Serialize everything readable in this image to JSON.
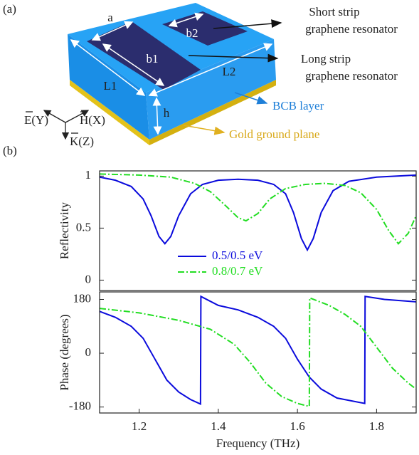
{
  "panels": [
    "(a)",
    "(b)"
  ],
  "diagram": {
    "dims": [
      "a",
      "b1",
      "b2",
      "L1",
      "L2",
      "h"
    ],
    "short_strip": [
      "Short strip",
      "graphene resonator"
    ],
    "long_strip": [
      "Long strip",
      "graphene resonator"
    ],
    "bcb": "BCB layer",
    "gold": "Gold ground plane",
    "axes": [
      "E(Y)",
      "H(X)",
      "K(Z)"
    ]
  },
  "chart_data": [
    {
      "type": "line",
      "ylabel": "Reflectivity",
      "xlim": [
        1.1,
        1.9
      ],
      "ylim": [
        -0.1,
        1.05
      ],
      "yticks": [
        0,
        0.5,
        1
      ],
      "legend": "lower center",
      "series": [
        {
          "name": "0.5/0.5 eV",
          "color": "#0a0adc",
          "linestyle": "solid",
          "x": [
            1.1,
            1.14,
            1.18,
            1.21,
            1.23,
            1.25,
            1.265,
            1.28,
            1.3,
            1.33,
            1.36,
            1.4,
            1.45,
            1.5,
            1.54,
            1.57,
            1.59,
            1.61,
            1.625,
            1.64,
            1.66,
            1.69,
            1.73,
            1.8,
            1.9
          ],
          "values": [
            0.99,
            0.96,
            0.9,
            0.78,
            0.62,
            0.42,
            0.35,
            0.42,
            0.62,
            0.83,
            0.92,
            0.96,
            0.97,
            0.96,
            0.92,
            0.83,
            0.65,
            0.4,
            0.29,
            0.4,
            0.65,
            0.86,
            0.95,
            0.99,
            1.01
          ]
        },
        {
          "name": "0.8/0.7 eV",
          "color": "#22dd22",
          "linestyle": "dashdot",
          "x": [
            1.1,
            1.2,
            1.28,
            1.34,
            1.38,
            1.42,
            1.45,
            1.47,
            1.5,
            1.53,
            1.57,
            1.62,
            1.67,
            1.72,
            1.76,
            1.8,
            1.83,
            1.855,
            1.88,
            1.9
          ],
          "values": [
            1.02,
            1.01,
            0.99,
            0.93,
            0.85,
            0.71,
            0.6,
            0.57,
            0.64,
            0.78,
            0.88,
            0.92,
            0.93,
            0.91,
            0.84,
            0.68,
            0.48,
            0.35,
            0.45,
            0.62
          ]
        }
      ]
    },
    {
      "type": "line",
      "ylabel": "Phase (degrees)",
      "xlabel": "Frequency (THz)",
      "xlim": [
        1.1,
        1.9
      ],
      "ylim": [
        -200,
        205
      ],
      "xticks": [
        1.2,
        1.4,
        1.6,
        1.8
      ],
      "yticks": [
        -180,
        0,
        180
      ],
      "series": [
        {
          "color": "#0a0adc",
          "linestyle": "solid",
          "x": [
            1.1,
            1.14,
            1.18,
            1.21,
            1.24,
            1.27,
            1.3,
            1.33,
            1.355,
            1.356,
            1.4,
            1.45,
            1.5,
            1.54,
            1.57,
            1.6,
            1.63,
            1.66,
            1.7,
            1.77,
            1.771,
            1.82,
            1.9
          ],
          "values": [
            140,
            120,
            90,
            50,
            -20,
            -90,
            -130,
            -155,
            -170,
            190,
            160,
            145,
            120,
            90,
            50,
            -20,
            -80,
            -120,
            -150,
            -168,
            190,
            180,
            172
          ]
        },
        {
          "color": "#22dd22",
          "linestyle": "dashdot",
          "x": [
            1.1,
            1.2,
            1.3,
            1.38,
            1.44,
            1.48,
            1.52,
            1.56,
            1.6,
            1.63,
            1.631,
            1.68,
            1.72,
            1.76,
            1.8,
            1.84,
            1.88,
            1.9
          ],
          "values": [
            150,
            135,
            110,
            80,
            30,
            -30,
            -100,
            -145,
            -168,
            -178,
            185,
            160,
            130,
            90,
            20,
            -50,
            -100,
            -120
          ]
        }
      ]
    }
  ]
}
